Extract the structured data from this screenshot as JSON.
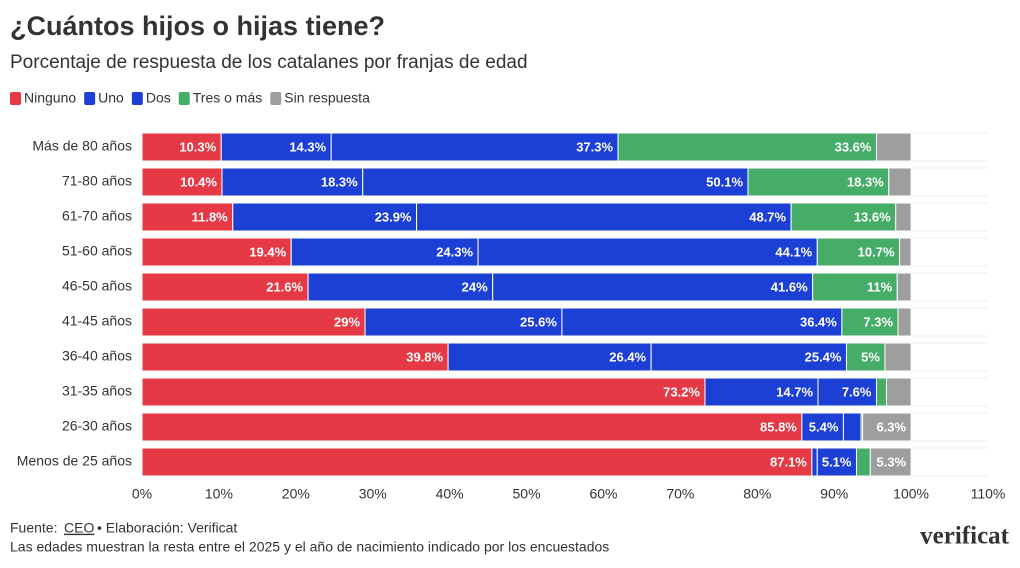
{
  "chart_data": {
    "type": "stacked-bar-horizontal",
    "title": "¿Cuántos hijos o hijas tiene?",
    "subtitle": "Porcentaje de respuesta de los catalanes por franjas de edad",
    "categories": [
      "Más de 80 años",
      "71-80 años",
      "61-70 años",
      "51-60 años",
      "46-50 años",
      "41-45 años",
      "36-40 años",
      "31-35 años",
      "26-30 años",
      "Menos de 25 años"
    ],
    "series": [
      {
        "name": "Ninguno",
        "color": "#e63946",
        "values": [
          10.3,
          10.4,
          11.8,
          19.4,
          21.6,
          29,
          39.8,
          73.2,
          85.8,
          87.1
        ],
        "value_labels": [
          "10.3%",
          "10.4%",
          "11.8%",
          "19.4%",
          "21.6%",
          "29%",
          "39.8%",
          "73.2%",
          "85.8%",
          "87.1%"
        ]
      },
      {
        "name": "Uno",
        "color": "#1c3fd6",
        "values": [
          14.3,
          18.3,
          23.9,
          24.3,
          24,
          25.6,
          26.4,
          14.7,
          5.4,
          0.7
        ],
        "value_labels": [
          "14.3%",
          "18.3%",
          "23.9%",
          "24.3%",
          "24%",
          "25.6%",
          "26.4%",
          "14.7%",
          "5.4%",
          null
        ]
      },
      {
        "name": "Dos",
        "color": "#1c3fd6",
        "values": [
          37.3,
          50.1,
          48.7,
          44.1,
          41.6,
          36.4,
          25.4,
          7.6,
          2.3,
          5.1
        ],
        "value_labels": [
          "37.3%",
          "50.1%",
          "48.7%",
          "44.1%",
          "41.6%",
          "36.4%",
          "25.4%",
          "7.6%",
          null,
          "5.1%"
        ]
      },
      {
        "name": "Tres o más",
        "color": "#45ad68",
        "values": [
          33.6,
          18.3,
          13.6,
          10.7,
          11,
          7.3,
          5,
          1.3,
          0.2,
          1.8
        ],
        "value_labels": [
          "33.6%",
          "18.3%",
          "13.6%",
          "10.7%",
          "11%",
          "7.3%",
          "5%",
          null,
          null,
          null
        ]
      },
      {
        "name": "Sin respuesta",
        "color": "#9e9e9e",
        "values": [
          4.5,
          2.9,
          2.0,
          1.5,
          1.8,
          1.7,
          3.4,
          3.2,
          6.3,
          5.3
        ],
        "value_labels": [
          null,
          null,
          null,
          null,
          null,
          null,
          null,
          null,
          "6.3%",
          "5.3%"
        ]
      }
    ],
    "xlim": [
      0,
      110
    ],
    "xticks": [
      {
        "value": 0,
        "label": "0%"
      },
      {
        "value": 10,
        "label": "10%"
      },
      {
        "value": 20,
        "label": "20%"
      },
      {
        "value": 30,
        "label": "30%"
      },
      {
        "value": 40,
        "label": "40%"
      },
      {
        "value": 50,
        "label": "50%"
      },
      {
        "value": 60,
        "label": "60%"
      },
      {
        "value": 70,
        "label": "70%"
      },
      {
        "value": 80,
        "label": "80%"
      },
      {
        "value": 90,
        "label": "90%"
      },
      {
        "value": 100,
        "label": "100%"
      },
      {
        "value": 110,
        "label": "110%"
      }
    ],
    "legend": "top-left",
    "source_label": "Fuente:",
    "source_link": "CEO",
    "credit": "• Elaboración: Verificat",
    "note": "Las edades muestran la resta entre el 2025 y el año de nacimiento indicado por los encuestados",
    "brand": "verificat"
  }
}
